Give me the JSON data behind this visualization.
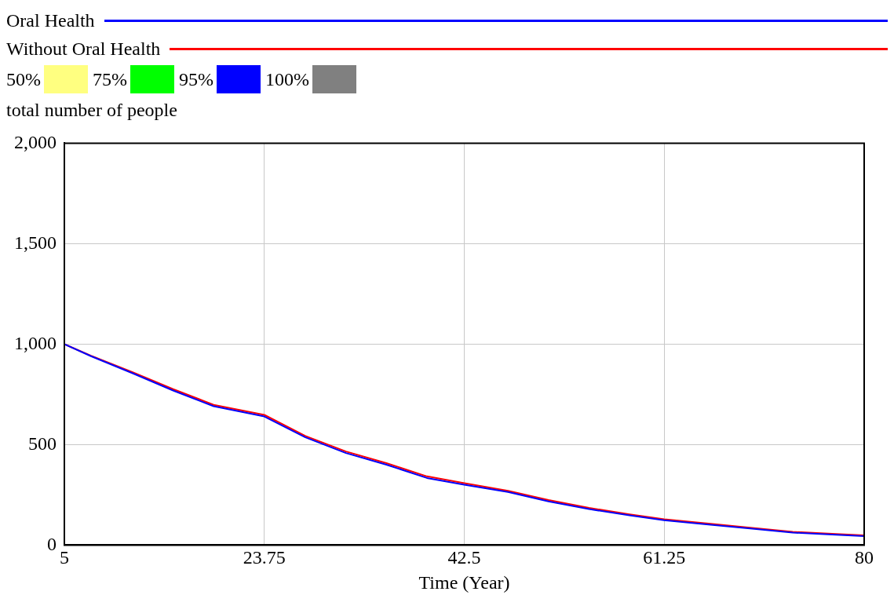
{
  "chart_data": {
    "type": "line",
    "xlabel": "Time (Year)",
    "ylabel": "total number of people",
    "x": [
      5,
      7.5,
      11.4,
      15.2,
      19,
      23.75,
      27.6,
      31.4,
      35.2,
      39,
      42.5,
      46.6,
      50.4,
      54.2,
      58,
      61.25,
      65.6,
      69.5,
      73.3,
      77,
      80
    ],
    "series": [
      {
        "name": "Oral Health",
        "color": "#0000ff",
        "values": [
          1000,
          940,
          855,
          769,
          691,
          640,
          536,
          458,
          400,
          334,
          300,
          264,
          217,
          179,
          148,
          124,
          101,
          82,
          62,
          52,
          45
        ]
      },
      {
        "name": "Without Oral Health",
        "color": "#ff0000",
        "values": [
          1000,
          942,
          860,
          776,
          698,
          648,
          543,
          466,
          408,
          342,
          308,
          270,
          224,
          185,
          153,
          129,
          106,
          86,
          66,
          56,
          48
        ]
      }
    ],
    "xlim": [
      5,
      80
    ],
    "xticks": [
      5,
      23.75,
      42.5,
      61.25,
      80
    ],
    "ylim": [
      0,
      2000
    ],
    "yticks": [
      0,
      500,
      {
        "value": 1000,
        "label": "1,000"
      },
      {
        "value": 1500,
        "label": "1,500"
      },
      {
        "value": 2000,
        "label": "2,000"
      }
    ],
    "annotations": [
      "50%",
      "75%",
      "95%",
      "100%"
    ],
    "grid": true,
    "legend": "top",
    "marker": "none",
    "line_style": "solid"
  }
}
